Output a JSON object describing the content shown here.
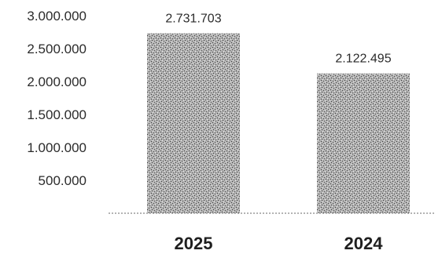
{
  "chart_data": {
    "type": "bar",
    "categories": [
      "2025",
      "2024"
    ],
    "values": [
      2731703,
      2122495
    ],
    "value_labels": [
      "2.731.703",
      "2.122.495"
    ],
    "y_ticks": [
      {
        "value": 500000,
        "label": "500.000"
      },
      {
        "value": 1000000,
        "label": "1.000.000"
      },
      {
        "value": 1500000,
        "label": "1.500.000"
      },
      {
        "value": 2000000,
        "label": "2.000.000"
      },
      {
        "value": 2500000,
        "label": "2.500.000"
      },
      {
        "value": 3000000,
        "label": "3.000.000"
      }
    ],
    "ylim": [
      0,
      3000000
    ],
    "grid": false,
    "legend": "none",
    "bar_color": "#8a8a8a",
    "bar_texture": "stippled"
  }
}
